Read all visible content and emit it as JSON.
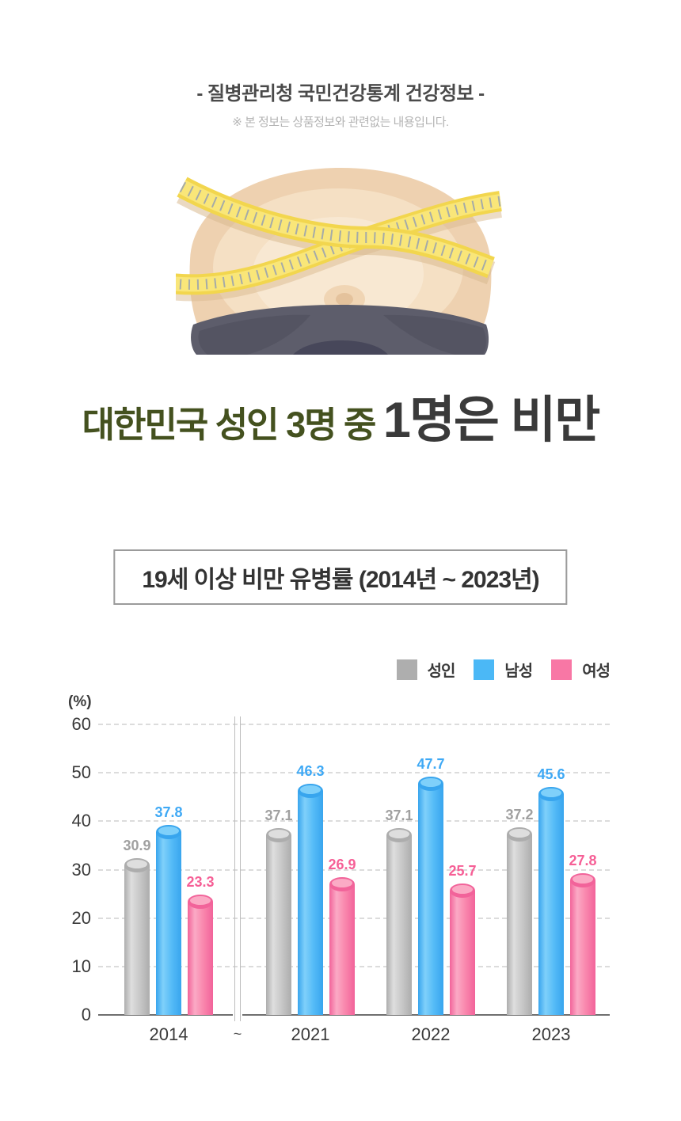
{
  "header": {
    "title": "- 질병관리청 국민건강통계 건강정보 -",
    "note": "※ 본 정보는 상품정보와 관련없는 내용입니다."
  },
  "headline": {
    "prefix": "대한민국 성인 3명 중 ",
    "emphasis": "1명은 비만",
    "prefix_color": "#44511f",
    "emphasis_color": "#3a3a3a"
  },
  "chart_title": "19세 이상 비만 유병률 (2014년 ~ 2023년)",
  "legend": [
    {
      "label": "성인",
      "color": "#aeaeae"
    },
    {
      "label": "남성",
      "color": "#4bb8f6"
    },
    {
      "label": "여성",
      "color": "#f877a5"
    }
  ],
  "chart_data": {
    "type": "bar",
    "title": "19세 이상 비만 유병률 (2014년 ~ 2023년)",
    "unit_label": "(%)",
    "categories": [
      "2014",
      "2021",
      "2022",
      "2023"
    ],
    "axis_break_label": "~",
    "yticks": [
      60,
      50,
      40,
      30,
      20,
      10,
      0
    ],
    "ylim": [
      0,
      60
    ],
    "grid": "horizontal-dashed",
    "legend_position": "top-right",
    "bar_style": "3d-cylinder",
    "series": [
      {
        "name": "성인",
        "values": [
          30.9,
          37.1,
          37.1,
          37.2
        ],
        "color_main": "#c7c7c7",
        "color_light": "#dedede",
        "color_dark": "#adadad",
        "color_label": "#a0a0a0"
      },
      {
        "name": "남성",
        "values": [
          37.8,
          46.3,
          47.7,
          45.6
        ],
        "color_main": "#55bbf7",
        "color_light": "#7fd0fa",
        "color_dark": "#38a5ee",
        "color_label": "#3fa9f5"
      },
      {
        "name": "여성",
        "values": [
          23.3,
          26.9,
          25.7,
          27.8
        ],
        "color_main": "#f987ad",
        "color_light": "#fbaac5",
        "color_dark": "#f2639a",
        "color_label": "#f65f96"
      }
    ]
  }
}
